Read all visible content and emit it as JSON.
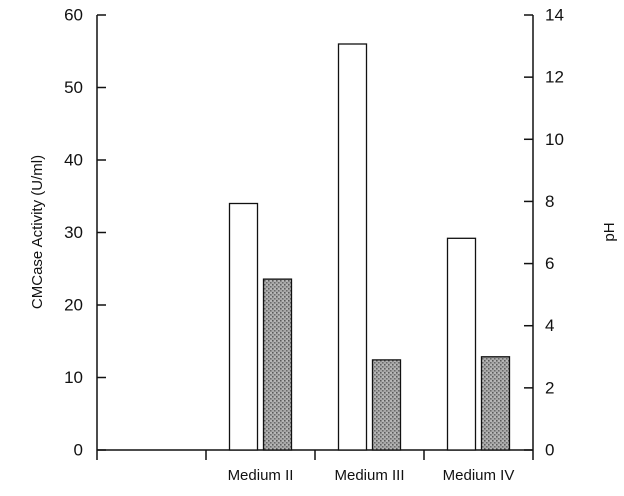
{
  "chart_data": {
    "type": "bar",
    "categories": [
      "",
      "Medium II",
      "Medium III",
      "Medium IV"
    ],
    "series": [
      {
        "axis": "left",
        "fill": "#ffffff",
        "values": [
          0,
          34,
          56,
          29.2
        ]
      },
      {
        "axis": "right",
        "fill": "#9a9a9a",
        "pattern": "stipple",
        "values": [
          0,
          5.5,
          2.9,
          3.0
        ]
      }
    ],
    "ylabel": "CMCase Activity (U/ml)",
    "y2label": "pH",
    "ylim": [
      0,
      60
    ],
    "y2lim": [
      0,
      14
    ],
    "yticks": [
      0,
      10,
      20,
      30,
      40,
      50,
      60
    ],
    "y2ticks": [
      0,
      2,
      4,
      6,
      8,
      10,
      12,
      14
    ],
    "grid": false,
    "legend": "none"
  }
}
